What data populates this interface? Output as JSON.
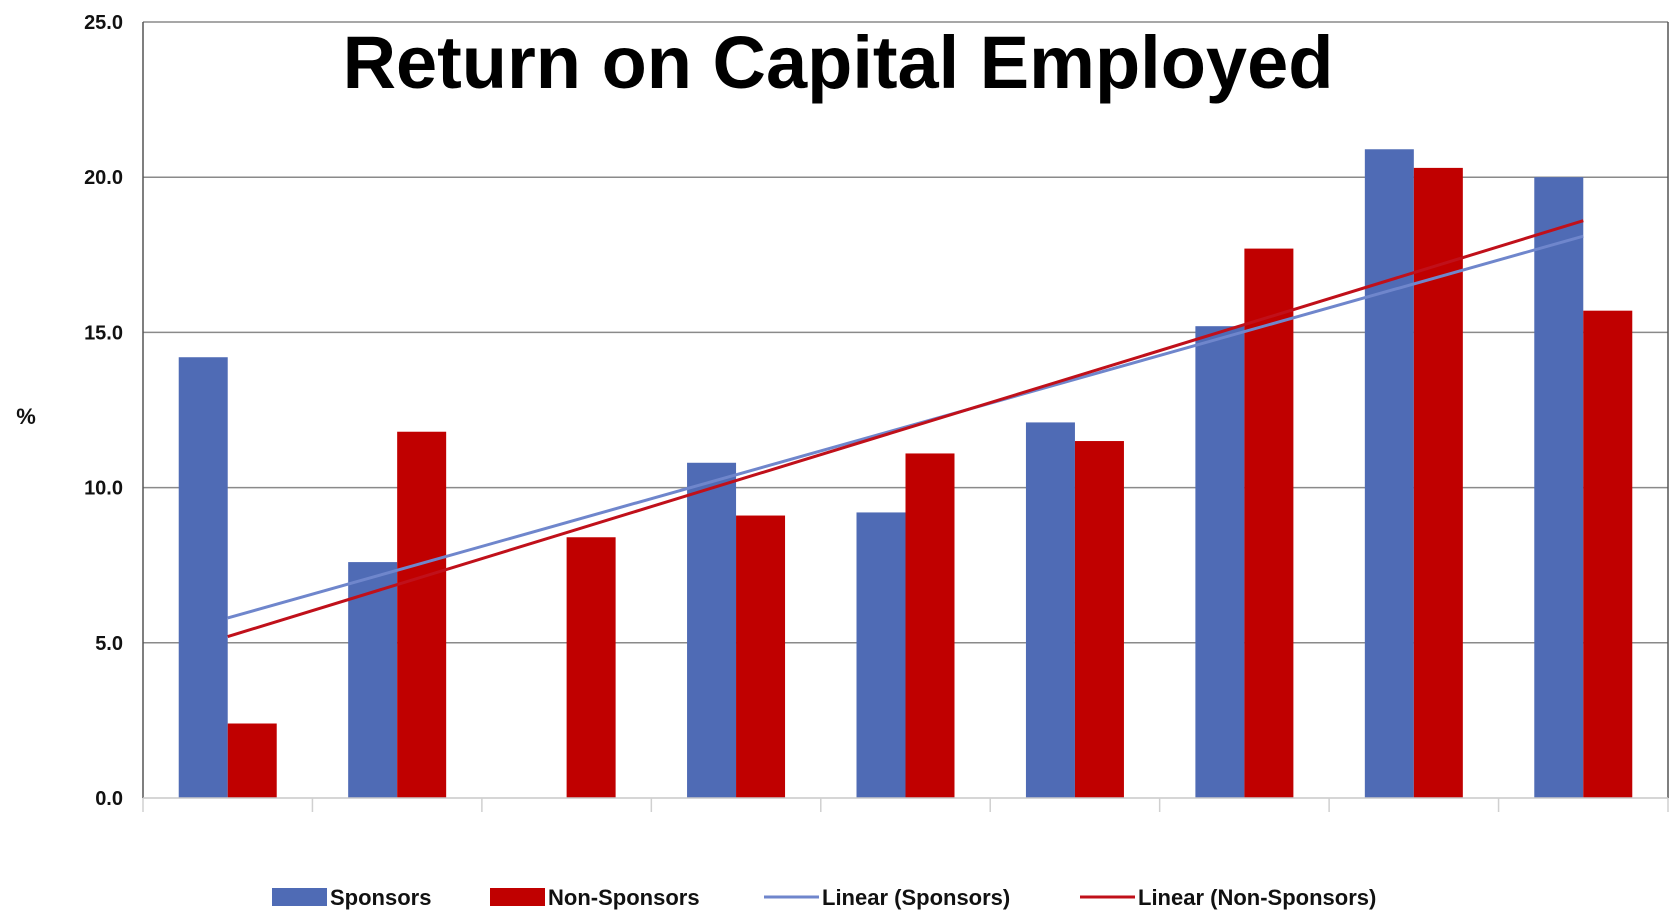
{
  "chart_data": {
    "type": "bar",
    "title": "Return on Capital Employed",
    "xlabel": "",
    "ylabel": "%",
    "ylim": [
      0,
      25
    ],
    "yticks": [
      "0.0",
      "5.0",
      "10.0",
      "15.0",
      "20.0",
      "25.0"
    ],
    "categories": [
      "",
      "",
      "",
      "",
      "",
      "",
      "",
      "",
      ""
    ],
    "series": [
      {
        "name": "Sponsors",
        "color": "#4F6BB5",
        "values": [
          14.2,
          7.6,
          null,
          10.8,
          9.2,
          12.1,
          15.2,
          20.9,
          20.0
        ]
      },
      {
        "name": "Non-Sponsors",
        "color": "#C00000",
        "values": [
          2.4,
          11.8,
          8.4,
          9.1,
          11.1,
          11.5,
          17.7,
          20.3,
          15.7
        ]
      }
    ],
    "trendlines": [
      {
        "name": "Linear (Sponsors)",
        "color": "#6F86CC",
        "start": 5.8,
        "end": 18.1
      },
      {
        "name": "Linear (Non-Sponsors)",
        "color": "#C0101A",
        "start": 5.2,
        "end": 18.6
      }
    ],
    "grid": true,
    "legend_position": "bottom"
  }
}
